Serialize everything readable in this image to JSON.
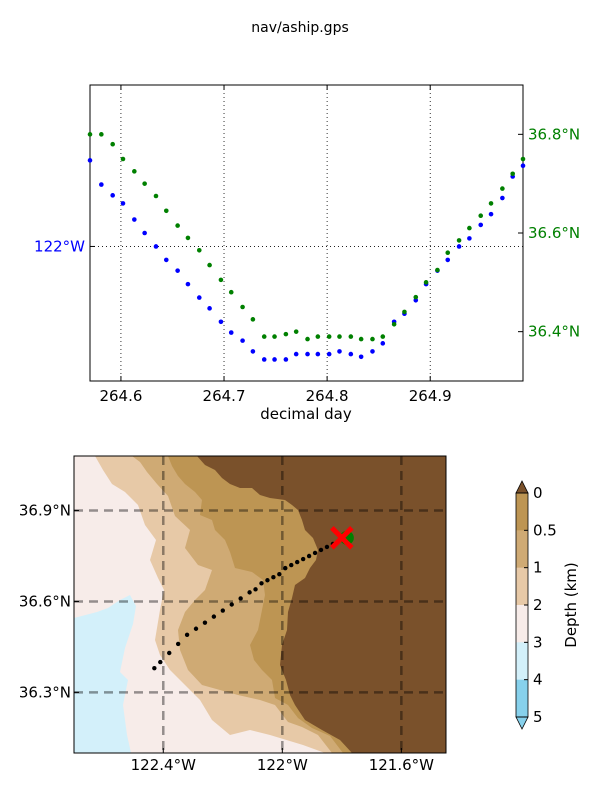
{
  "figure_title": "nav/aship.gps",
  "chart_data": [
    {
      "type": "scatter",
      "title": "nav/aship.gps",
      "xlabel": "decimal day",
      "xlim": [
        264.57,
        264.99
      ],
      "x_ticks": [
        264.6,
        264.7,
        264.8,
        264.9
      ],
      "x_tick_labels": [
        "264.6",
        "264.7",
        "264.8",
        "264.9"
      ],
      "grid": true,
      "left_axis": {
        "color": "#0000ff",
        "ylim": [
          -122.25,
          -121.7
        ],
        "ticks": [
          -122.0
        ],
        "tick_labels": [
          "122°W"
        ]
      },
      "right_axis": {
        "color": "#008000",
        "ylim": [
          36.3,
          36.9
        ],
        "ticks": [
          36.4,
          36.6,
          36.8
        ],
        "tick_labels": [
          "36.4°N",
          "36.6°N",
          "36.8°N"
        ]
      },
      "series": [
        {
          "axis": "left",
          "color": "#0000ff",
          "x": [
            264.57,
            264.581,
            264.592,
            264.602,
            264.613,
            264.623,
            264.634,
            264.644,
            264.655,
            264.665,
            264.676,
            264.686,
            264.697,
            264.707,
            264.718,
            264.728,
            264.739,
            264.749,
            264.76,
            264.77,
            264.781,
            264.791,
            264.802,
            264.812,
            264.823,
            264.833,
            264.844,
            264.854,
            264.865,
            264.875,
            264.886,
            264.896,
            264.907,
            264.917,
            264.928,
            264.938,
            264.949,
            264.959,
            264.97,
            264.98,
            264.99
          ],
          "y": [
            -121.84,
            -121.885,
            -121.905,
            -121.92,
            -121.95,
            -121.975,
            -122.0,
            -122.025,
            -122.045,
            -122.07,
            -122.095,
            -122.115,
            -122.14,
            -122.16,
            -122.175,
            -122.195,
            -122.21,
            -122.21,
            -122.21,
            -122.2,
            -122.2,
            -122.2,
            -122.2,
            -122.195,
            -122.2,
            -122.205,
            -122.195,
            -122.18,
            -122.14,
            -122.125,
            -122.1,
            -122.07,
            -122.045,
            -122.025,
            -122.0,
            -121.985,
            -121.96,
            -121.94,
            -121.91,
            -121.87,
            -121.85
          ]
        },
        {
          "axis": "right",
          "color": "#008000",
          "x": [
            264.57,
            264.581,
            264.592,
            264.602,
            264.613,
            264.623,
            264.634,
            264.644,
            264.655,
            264.665,
            264.676,
            264.686,
            264.697,
            264.707,
            264.718,
            264.728,
            264.739,
            264.749,
            264.76,
            264.77,
            264.781,
            264.791,
            264.802,
            264.812,
            264.823,
            264.833,
            264.844,
            264.854,
            264.865,
            264.875,
            264.886,
            264.896,
            264.907,
            264.917,
            264.928,
            264.938,
            264.949,
            264.959,
            264.97,
            264.98,
            264.99
          ],
          "y": [
            36.8,
            36.8,
            36.78,
            36.75,
            36.725,
            36.7,
            36.675,
            36.645,
            36.615,
            36.59,
            36.565,
            36.535,
            36.505,
            36.48,
            36.45,
            36.425,
            36.39,
            36.39,
            36.395,
            36.4,
            36.385,
            36.39,
            36.39,
            36.39,
            36.39,
            36.385,
            36.385,
            36.39,
            36.415,
            36.44,
            36.47,
            36.5,
            36.525,
            36.56,
            36.585,
            36.61,
            36.635,
            36.66,
            36.69,
            36.72,
            36.75
          ]
        }
      ]
    },
    {
      "type": "heatmap",
      "subtype": "filled-contour-map",
      "xlim": [
        -122.7,
        -121.45
      ],
      "ylim": [
        36.1,
        37.08
      ],
      "x_ticks": [
        -122.4,
        -122.0,
        -121.6
      ],
      "x_tick_labels": [
        "122.4°W",
        "122°W",
        "121.6°W"
      ],
      "y_ticks": [
        36.3,
        36.6,
        36.9
      ],
      "y_tick_labels": [
        "36.3°N",
        "36.6°N",
        "36.9°N"
      ],
      "grid": true,
      "colorbar": {
        "label": "Depth (km)",
        "levels": [
          0,
          0.5,
          1,
          2,
          3,
          4,
          5
        ],
        "tick_labels": [
          "0",
          "0.5",
          "1",
          "2",
          "3",
          "4",
          "5"
        ],
        "colors": [
          "#bd9553",
          "#cfaa74",
          "#e7c9a7",
          "#f7ece9",
          "#d3f0fa",
          "#87d1ec"
        ],
        "land_color": "#7a512b",
        "extend": "both"
      },
      "track": {
        "color": "#000000",
        "lon": [
          -122.43,
          -122.41,
          -122.38,
          -122.35,
          -122.32,
          -122.29,
          -122.26,
          -122.23,
          -122.2,
          -122.17,
          -122.14,
          -122.11,
          -122.09,
          -122.07,
          -122.05,
          -122.03,
          -122.01,
          -121.99,
          -121.97,
          -121.95,
          -121.93,
          -121.91,
          -121.89,
          -121.87,
          -121.85,
          -121.83
        ],
        "lat": [
          36.38,
          36.4,
          36.43,
          36.46,
          36.49,
          36.51,
          36.53,
          36.55,
          36.57,
          36.59,
          36.61,
          36.63,
          36.64,
          36.66,
          36.67,
          36.68,
          36.69,
          36.71,
          36.72,
          36.73,
          36.74,
          36.75,
          36.76,
          36.77,
          36.78,
          36.79
        ]
      },
      "markers": [
        {
          "kind": "start-dot",
          "color": "#008000",
          "lon": -121.8,
          "lat": 36.81
        },
        {
          "kind": "end-x",
          "color": "#ff0000",
          "lon": -121.8,
          "lat": 36.81
        }
      ]
    }
  ]
}
